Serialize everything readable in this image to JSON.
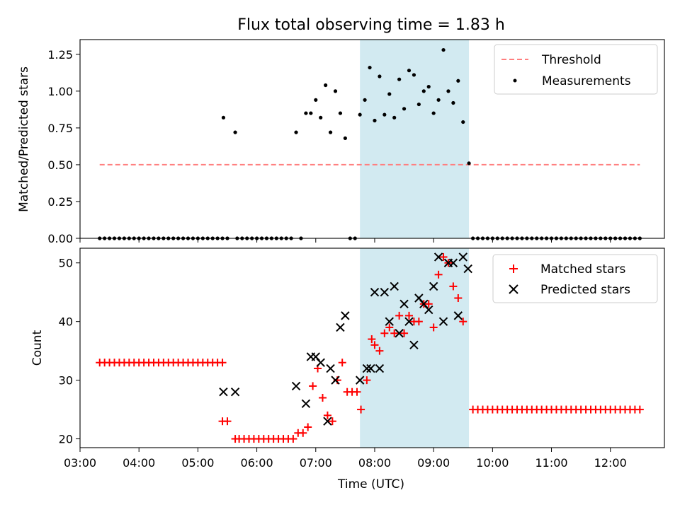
{
  "figure": {
    "title": "Flux total observing time = 1.83 h",
    "xlabel": "Time (UTC)"
  },
  "chart_data": [
    {
      "type": "scatter",
      "ylabel": "Matched/Predicted stars",
      "xlim": [
        "03:00",
        "12:55"
      ],
      "ylim": [
        0,
        1.35
      ],
      "x_ticks": [
        "03:00",
        "04:00",
        "05:00",
        "06:00",
        "07:00",
        "08:00",
        "09:00",
        "10:00",
        "11:00",
        "12:00"
      ],
      "y_ticks": [
        "0.00",
        "0.25",
        "0.50",
        "0.75",
        "1.00",
        "1.25"
      ],
      "y_tick_values": [
        0,
        0.25,
        0.5,
        0.75,
        1.0,
        1.25
      ],
      "shaded_region": {
        "x": [
          "07:45",
          "09:36"
        ],
        "color": "#add8e6"
      },
      "legend": {
        "position": "top-right",
        "threshold_label": "Threshold",
        "measurements_label": "Measurements"
      },
      "threshold": {
        "name": "Threshold",
        "y": 0.5,
        "x": [
          "03:20",
          "12:30"
        ],
        "color": "#ff7f7f"
      },
      "measurements": {
        "name": "Measurements",
        "color": "#000000",
        "points": [
          [
            "05:26",
            0.82
          ],
          [
            "05:38",
            0.72
          ],
          [
            "06:40",
            0.72
          ],
          [
            "06:50",
            0.85
          ],
          [
            "06:55",
            0.85
          ],
          [
            "07:00",
            0.94
          ],
          [
            "07:05",
            0.82
          ],
          [
            "07:10",
            1.04
          ],
          [
            "07:15",
            0.72
          ],
          [
            "07:20",
            1.0
          ],
          [
            "07:25",
            0.85
          ],
          [
            "07:30",
            0.68
          ],
          [
            "07:45",
            0.84
          ],
          [
            "07:50",
            0.94
          ],
          [
            "07:55",
            1.16
          ],
          [
            "08:00",
            0.8
          ],
          [
            "08:05",
            1.1
          ],
          [
            "08:10",
            0.84
          ],
          [
            "08:15",
            0.98
          ],
          [
            "08:20",
            0.82
          ],
          [
            "08:25",
            1.08
          ],
          [
            "08:30",
            0.88
          ],
          [
            "08:35",
            1.14
          ],
          [
            "08:40",
            1.11
          ],
          [
            "08:45",
            0.91
          ],
          [
            "08:50",
            1.0
          ],
          [
            "08:55",
            1.03
          ],
          [
            "09:00",
            0.85
          ],
          [
            "09:05",
            0.94
          ],
          [
            "09:10",
            1.28
          ],
          [
            "09:15",
            1.0
          ],
          [
            "09:20",
            0.92
          ],
          [
            "09:25",
            1.07
          ],
          [
            "09:30",
            0.79
          ],
          [
            "09:36",
            0.51
          ]
        ],
        "zero_runs": [
          {
            "start": "03:20",
            "end": "05:25",
            "step_min": 5
          },
          {
            "start": "05:30",
            "end": "05:30",
            "step_min": 5
          },
          {
            "start": "05:40",
            "end": "06:35",
            "step_min": 5
          },
          {
            "start": "06:45",
            "end": "06:45",
            "step_min": 5
          },
          {
            "start": "07:35",
            "end": "07:40",
            "step_min": 5
          },
          {
            "start": "09:40",
            "end": "12:30",
            "step_min": 5
          }
        ]
      }
    },
    {
      "type": "scatter",
      "ylabel": "Count",
      "xlim": [
        "03:00",
        "12:55"
      ],
      "ylim": [
        18.5,
        52.5
      ],
      "x_ticks": [
        "03:00",
        "04:00",
        "05:00",
        "06:00",
        "07:00",
        "08:00",
        "09:00",
        "10:00",
        "11:00",
        "12:00"
      ],
      "y_ticks": [
        "20",
        "30",
        "40",
        "50"
      ],
      "y_tick_values": [
        20,
        30,
        40,
        50
      ],
      "shaded_region": {
        "x": [
          "07:45",
          "09:36"
        ],
        "color": "#add8e6"
      },
      "legend": {
        "position": "top-right",
        "matched_label": "Matched stars",
        "predicted_label": "Predicted stars"
      },
      "matched": {
        "name": "Matched stars",
        "color": "#ff0000",
        "marker": "+",
        "runs": [
          {
            "start": "03:20",
            "end": "05:25",
            "step_min": 5,
            "y": 33
          },
          {
            "start": "09:40",
            "end": "12:30",
            "step_min": 5,
            "y": 25
          }
        ],
        "points": [
          [
            "05:25",
            23
          ],
          [
            "05:30",
            23
          ],
          [
            "05:38",
            20
          ],
          [
            "05:42",
            20
          ],
          [
            "05:47",
            20
          ],
          [
            "05:52",
            20
          ],
          [
            "05:57",
            20
          ],
          [
            "06:02",
            20
          ],
          [
            "06:07",
            20
          ],
          [
            "06:12",
            20
          ],
          [
            "06:17",
            20
          ],
          [
            "06:22",
            20
          ],
          [
            "06:27",
            20
          ],
          [
            "06:32",
            20
          ],
          [
            "06:37",
            20
          ],
          [
            "06:42",
            21
          ],
          [
            "06:47",
            21
          ],
          [
            "06:52",
            22
          ],
          [
            "06:57",
            29
          ],
          [
            "07:02",
            32
          ],
          [
            "07:07",
            27
          ],
          [
            "07:12",
            24
          ],
          [
            "07:17",
            23
          ],
          [
            "07:22",
            30
          ],
          [
            "07:27",
            33
          ],
          [
            "07:32",
            28
          ],
          [
            "07:37",
            28
          ],
          [
            "07:42",
            28
          ],
          [
            "07:46",
            25
          ],
          [
            "07:52",
            30
          ],
          [
            "07:57",
            37
          ],
          [
            "08:00",
            36
          ],
          [
            "08:05",
            35
          ],
          [
            "08:10",
            38
          ],
          [
            "08:15",
            39
          ],
          [
            "08:20",
            38
          ],
          [
            "08:25",
            41
          ],
          [
            "08:30",
            38
          ],
          [
            "08:35",
            41
          ],
          [
            "08:40",
            40
          ],
          [
            "08:45",
            40
          ],
          [
            "08:50",
            43
          ],
          [
            "08:55",
            43
          ],
          [
            "09:00",
            39
          ],
          [
            "09:05",
            48
          ],
          [
            "09:10",
            51
          ],
          [
            "09:15",
            50
          ],
          [
            "09:20",
            46
          ],
          [
            "09:25",
            44
          ],
          [
            "09:30",
            40
          ]
        ]
      },
      "predicted": {
        "name": "Predicted stars",
        "color": "#000000",
        "marker": "x",
        "points": [
          [
            "05:26",
            28
          ],
          [
            "05:38",
            28
          ],
          [
            "06:40",
            29
          ],
          [
            "06:50",
            26
          ],
          [
            "06:55",
            34
          ],
          [
            "07:00",
            34
          ],
          [
            "07:05",
            33
          ],
          [
            "07:12",
            23
          ],
          [
            "07:15",
            32
          ],
          [
            "07:20",
            30
          ],
          [
            "07:25",
            39
          ],
          [
            "07:30",
            41
          ],
          [
            "07:45",
            30
          ],
          [
            "07:52",
            32
          ],
          [
            "07:56",
            32
          ],
          [
            "08:00",
            45
          ],
          [
            "08:05",
            32
          ],
          [
            "08:10",
            45
          ],
          [
            "08:15",
            40
          ],
          [
            "08:20",
            46
          ],
          [
            "08:25",
            38
          ],
          [
            "08:30",
            43
          ],
          [
            "08:35",
            40
          ],
          [
            "08:40",
            36
          ],
          [
            "08:45",
            44
          ],
          [
            "08:50",
            43
          ],
          [
            "08:55",
            42
          ],
          [
            "09:00",
            46
          ],
          [
            "09:05",
            51
          ],
          [
            "09:10",
            40
          ],
          [
            "09:15",
            50
          ],
          [
            "09:20",
            50
          ],
          [
            "09:25",
            41
          ],
          [
            "09:30",
            51
          ],
          [
            "09:35",
            49
          ]
        ]
      }
    }
  ]
}
